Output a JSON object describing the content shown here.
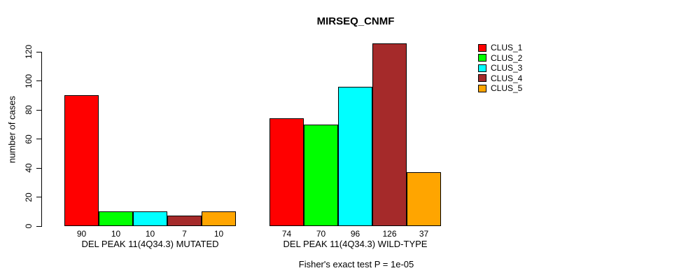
{
  "page": {
    "background": "#ffffff"
  },
  "chart_data": {
    "type": "bar",
    "title": "MIRSEQ_CNMF",
    "xlabel": "",
    "ylabel": "number of cases",
    "yticks": [
      0,
      20,
      40,
      60,
      80,
      100,
      120
    ],
    "ylim": [
      0,
      130
    ],
    "grid": false,
    "legend_position": "right-outside",
    "legend": [
      {
        "label": "CLUS_1",
        "color": "#FF0000"
      },
      {
        "label": "CLUS_2",
        "color": "#00FF00"
      },
      {
        "label": "CLUS_3",
        "color": "#00FFFF"
      },
      {
        "label": "CLUS_4",
        "color": "#A52A2A"
      },
      {
        "label": "CLUS_5",
        "color": "#FFA500"
      }
    ],
    "categories": [
      "CLUS_1",
      "CLUS_2",
      "CLUS_3",
      "CLUS_4",
      "CLUS_5"
    ],
    "groups": [
      {
        "label": "DEL PEAK 11(4Q34.3) MUTATED",
        "values": [
          90,
          10,
          10,
          7,
          10
        ],
        "value_labels": [
          "90",
          "10",
          "10",
          "7",
          "10"
        ]
      },
      {
        "label": "DEL PEAK 11(4Q34.3) WILD-TYPE",
        "values": [
          74,
          70,
          96,
          126,
          37
        ],
        "value_labels": [
          "74",
          "70",
          "96",
          "126",
          "37"
        ]
      }
    ],
    "annotation": "Fisher's exact test P = 1e-05"
  }
}
